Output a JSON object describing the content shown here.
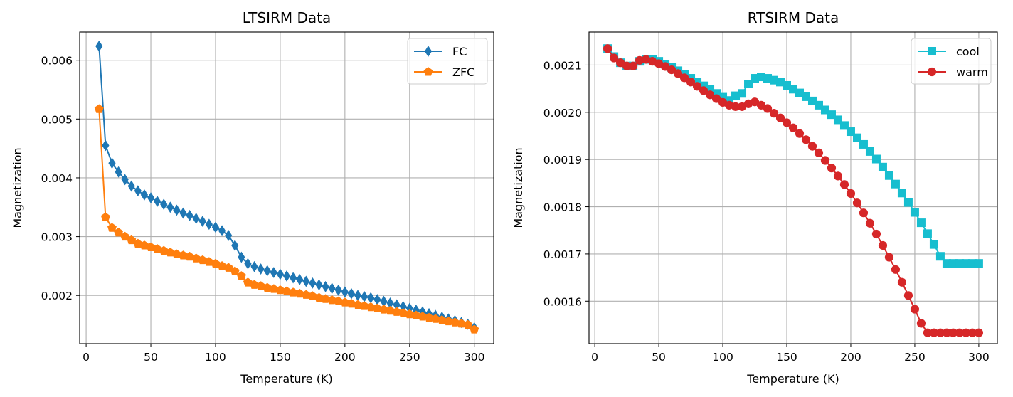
{
  "chart_data": [
    {
      "type": "line",
      "title": "LTSIRM Data",
      "xlabel": "Temperature (K)",
      "ylabel": "Magnetization",
      "xlim": [
        -5,
        315
      ],
      "ylim": [
        0.00118,
        0.00648
      ],
      "xticks": [
        0,
        50,
        100,
        150,
        200,
        250,
        300
      ],
      "yticks": [
        0.002,
        0.003,
        0.004,
        0.005,
        0.006
      ],
      "xtick_labels": [
        "0",
        "50",
        "100",
        "150",
        "200",
        "250",
        "300"
      ],
      "ytick_labels": [
        "0.002",
        "0.003",
        "0.004",
        "0.005",
        "0.006"
      ],
      "grid": true,
      "legend_position": "top-right",
      "series": [
        {
          "name": "FC",
          "color": "#1f77b4",
          "marker": "thin_diamond",
          "x": [
            10,
            15,
            20,
            25,
            30,
            35,
            40,
            45,
            50,
            55,
            60,
            65,
            70,
            75,
            80,
            85,
            90,
            95,
            100,
            105,
            110,
            115,
            120,
            125,
            130,
            135,
            140,
            145,
            150,
            155,
            160,
            165,
            170,
            175,
            180,
            185,
            190,
            195,
            200,
            205,
            210,
            215,
            220,
            225,
            230,
            235,
            240,
            245,
            250,
            255,
            260,
            265,
            270,
            275,
            280,
            285,
            290,
            295,
            300
          ],
          "y": [
            0.00624,
            0.00455,
            0.00425,
            0.0041,
            0.00397,
            0.00386,
            0.00378,
            0.00371,
            0.00366,
            0.0036,
            0.00355,
            0.0035,
            0.00345,
            0.0034,
            0.00336,
            0.00331,
            0.00326,
            0.00321,
            0.00316,
            0.0031,
            0.00302,
            0.00285,
            0.00265,
            0.00254,
            0.00249,
            0.00245,
            0.00242,
            0.00239,
            0.00236,
            0.00233,
            0.0023,
            0.00227,
            0.00224,
            0.00221,
            0.00218,
            0.00215,
            0.00212,
            0.00209,
            0.00206,
            0.00203,
            0.002,
            0.00198,
            0.00196,
            0.00193,
            0.0019,
            0.00187,
            0.00184,
            0.00181,
            0.00178,
            0.00175,
            0.00172,
            0.00169,
            0.00166,
            0.00163,
            0.0016,
            0.00157,
            0.00154,
            0.00151,
            0.00145
          ]
        },
        {
          "name": "ZFC",
          "color": "#ff7f0e",
          "marker": "pentagon",
          "x": [
            10,
            15,
            20,
            25,
            30,
            35,
            40,
            45,
            50,
            55,
            60,
            65,
            70,
            75,
            80,
            85,
            90,
            95,
            100,
            105,
            110,
            115,
            120,
            125,
            130,
            135,
            140,
            145,
            150,
            155,
            160,
            165,
            170,
            175,
            180,
            185,
            190,
            195,
            200,
            205,
            210,
            215,
            220,
            225,
            230,
            235,
            240,
            245,
            250,
            255,
            260,
            265,
            270,
            275,
            280,
            285,
            290,
            295,
            300
          ],
          "y": [
            0.00517,
            0.00333,
            0.00315,
            0.00307,
            0.003,
            0.00294,
            0.00288,
            0.00285,
            0.00282,
            0.00279,
            0.00276,
            0.00273,
            0.0027,
            0.00268,
            0.00266,
            0.00263,
            0.0026,
            0.00257,
            0.00254,
            0.0025,
            0.00247,
            0.00241,
            0.00233,
            0.00222,
            0.00218,
            0.00216,
            0.00213,
            0.00211,
            0.00209,
            0.00207,
            0.00205,
            0.00203,
            0.00201,
            0.00199,
            0.00196,
            0.00194,
            0.00192,
            0.0019,
            0.00188,
            0.00186,
            0.00184,
            0.00182,
            0.0018,
            0.00178,
            0.00176,
            0.00174,
            0.00172,
            0.0017,
            0.00168,
            0.00166,
            0.00164,
            0.00162,
            0.0016,
            0.00158,
            0.00156,
            0.00154,
            0.00152,
            0.0015,
            0.00142
          ]
        }
      ]
    },
    {
      "type": "line",
      "title": "RTSIRM Data",
      "xlabel": "Temperature (K)",
      "ylabel": "Magnetization",
      "xlim": [
        -4.5,
        314.5
      ],
      "ylim": [
        0.00151,
        0.00217
      ],
      "xticks": [
        0,
        50,
        100,
        150,
        200,
        250,
        300
      ],
      "yticks": [
        0.0016,
        0.0017,
        0.0018,
        0.0019,
        0.002,
        0.0021
      ],
      "xtick_labels": [
        "0",
        "50",
        "100",
        "150",
        "200",
        "250",
        "300"
      ],
      "ytick_labels": [
        "0.0016",
        "0.0017",
        "0.0018",
        "0.0019",
        "0.0020",
        "0.0021"
      ],
      "grid": true,
      "legend_position": "top-right",
      "series": [
        {
          "name": "cool",
          "color": "#17becf",
          "marker": "square",
          "x": [
            10,
            15,
            20,
            25,
            30,
            35,
            40,
            45,
            50,
            55,
            60,
            65,
            70,
            75,
            80,
            85,
            90,
            95,
            100,
            105,
            110,
            115,
            120,
            125,
            130,
            135,
            140,
            145,
            150,
            155,
            160,
            165,
            170,
            175,
            180,
            185,
            190,
            195,
            200,
            205,
            210,
            215,
            220,
            225,
            230,
            235,
            240,
            245,
            250,
            255,
            260,
            265,
            270,
            275,
            280,
            285,
            290,
            295,
            300
          ],
          "y": [
            0.002135,
            0.002118,
            0.002105,
            0.002098,
            0.002098,
            0.002108,
            0.002112,
            0.002112,
            0.002108,
            0.002102,
            0.002095,
            0.002088,
            0.00208,
            0.002072,
            0.002064,
            0.002056,
            0.002048,
            0.00204,
            0.002032,
            0.002025,
            0.002035,
            0.00204,
            0.00206,
            0.002072,
            0.002075,
            0.002072,
            0.002068,
            0.002064,
            0.002057,
            0.002049,
            0.002041,
            0.002033,
            0.002024,
            0.002015,
            0.002005,
            0.001995,
            0.001984,
            0.001972,
            0.001959,
            0.001946,
            0.001932,
            0.001917,
            0.001901,
            0.001884,
            0.001866,
            0.001848,
            0.001829,
            0.001809,
            0.001788,
            0.001766,
            0.001743,
            0.00172,
            0.001695,
            0.00168,
            0.00168,
            0.00168,
            0.00168,
            0.00168,
            0.00168
          ]
        },
        {
          "name": "warm",
          "color": "#d62728",
          "marker": "circle",
          "x": [
            10,
            15,
            20,
            25,
            30,
            35,
            40,
            45,
            50,
            55,
            60,
            65,
            70,
            75,
            80,
            85,
            90,
            95,
            100,
            105,
            110,
            115,
            120,
            125,
            130,
            135,
            140,
            145,
            150,
            155,
            160,
            165,
            170,
            175,
            180,
            185,
            190,
            195,
            200,
            205,
            210,
            215,
            220,
            225,
            230,
            235,
            240,
            245,
            250,
            255,
            260,
            265,
            270,
            275,
            280,
            285,
            290,
            295,
            300
          ],
          "y": [
            0.002135,
            0.002115,
            0.002105,
            0.002098,
            0.002098,
            0.00211,
            0.002112,
            0.002108,
            0.002103,
            0.002097,
            0.00209,
            0.002082,
            0.002073,
            0.002064,
            0.002055,
            0.002046,
            0.002037,
            0.002029,
            0.002021,
            0.002015,
            0.002012,
            0.002012,
            0.002018,
            0.002022,
            0.002015,
            0.002008,
            0.001998,
            0.001988,
            0.001978,
            0.001967,
            0.001955,
            0.001942,
            0.001928,
            0.001914,
            0.001898,
            0.001882,
            0.001865,
            0.001847,
            0.001828,
            0.001808,
            0.001787,
            0.001765,
            0.001742,
            0.001718,
            0.001693,
            0.001667,
            0.00164,
            0.001612,
            0.001583,
            0.001553,
            0.001533,
            0.001533,
            0.001533,
            0.001533,
            0.001533,
            0.001533,
            0.001533,
            0.001533,
            0.001533
          ]
        }
      ]
    }
  ]
}
